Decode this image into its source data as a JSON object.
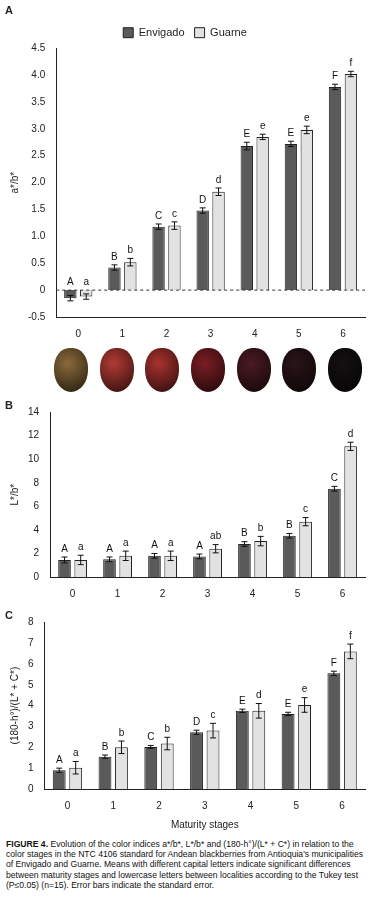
{
  "chart_data": [
    {
      "type": "bar",
      "title": "A",
      "ylabel": "a*/b*",
      "categories": [
        "0",
        "1",
        "2",
        "3",
        "4",
        "5",
        "6"
      ],
      "series": [
        {
          "name": "Envigado",
          "color": "#5a5a5a",
          "values": [
            -0.15,
            0.42,
            1.18,
            1.48,
            2.68,
            2.72,
            3.78
          ],
          "errors": [
            0.05,
            0.05,
            0.05,
            0.05,
            0.07,
            0.05,
            0.05
          ],
          "letters": [
            "A",
            "B",
            "C",
            "D",
            "E",
            "E",
            "F"
          ]
        },
        {
          "name": "Guarne",
          "color": "#e2e2e2",
          "values": [
            -0.12,
            0.52,
            1.2,
            1.83,
            2.85,
            2.98,
            4.02
          ],
          "errors": [
            0.05,
            0.07,
            0.07,
            0.07,
            0.05,
            0.07,
            0.05
          ],
          "letters": [
            "a",
            "b",
            "c",
            "d",
            "e",
            "e",
            "f"
          ]
        }
      ],
      "ylim": [
        -0.5,
        4.5
      ],
      "yticks": [
        -0.5,
        0,
        0.5,
        {
          "value": 1,
          "label": "1.0"
        },
        1.5,
        {
          "value": 2,
          "label": "2.0"
        },
        2.5,
        {
          "value": 3,
          "label": "3.0"
        },
        3.5,
        {
          "value": 4,
          "label": "4.0"
        },
        4.5
      ],
      "grid": false,
      "legend": "top"
    },
    {
      "type": "bar",
      "title": "B",
      "ylabel": "L*/b*",
      "categories": [
        "0",
        "1",
        "2",
        "3",
        "4",
        "5",
        "6"
      ],
      "series": [
        {
          "name": "Envigado",
          "color": "#5a5a5a",
          "values": [
            1.45,
            1.5,
            1.8,
            1.75,
            2.8,
            3.5,
            7.5
          ],
          "errors": [
            0.25,
            0.2,
            0.2,
            0.2,
            0.2,
            0.2,
            0.2
          ],
          "letters": [
            "A",
            "A",
            "A",
            "A",
            "B",
            "B",
            "C"
          ]
        },
        {
          "name": "Guarne",
          "color": "#e2e2e2",
          "values": [
            1.45,
            1.8,
            1.8,
            2.4,
            3.05,
            4.7,
            11.1
          ],
          "errors": [
            0.4,
            0.4,
            0.4,
            0.35,
            0.4,
            0.35,
            0.35
          ],
          "letters": [
            "a",
            "a",
            "a",
            "ab",
            "b",
            "c",
            "d"
          ]
        }
      ],
      "ylim": [
        0,
        14
      ],
      "yticks": [
        0,
        2,
        4,
        6,
        8,
        10,
        12,
        14
      ],
      "grid": false
    },
    {
      "type": "bar",
      "title": "C",
      "ylabel": "(180-h°)/(L* + C*)",
      "xlabel": "Maturity stages",
      "categories": [
        "0",
        "1",
        "2",
        "3",
        "4",
        "5",
        "6"
      ],
      "series": [
        {
          "name": "Envigado",
          "color": "#5a5a5a",
          "values": [
            0.9,
            1.55,
            2.02,
            2.72,
            3.75,
            3.6,
            5.55
          ],
          "errors": [
            0.1,
            0.08,
            0.07,
            0.1,
            0.08,
            0.08,
            0.1
          ],
          "letters": [
            "A",
            "B",
            "C",
            "D",
            "E",
            "E",
            "F"
          ]
        },
        {
          "name": "Guarne",
          "color": "#e2e2e2",
          "values": [
            1.02,
            2.0,
            2.18,
            2.8,
            3.75,
            4.03,
            6.6
          ],
          "errors": [
            0.3,
            0.3,
            0.3,
            0.35,
            0.35,
            0.35,
            0.35
          ],
          "letters": [
            "a",
            "b",
            "b",
            "c",
            "d",
            "e",
            "f"
          ]
        }
      ],
      "ylim": [
        0,
        8
      ],
      "yticks": [
        0,
        1,
        2,
        3,
        4,
        5,
        6,
        7,
        8
      ],
      "grid": false
    }
  ],
  "caption_label": "FIGURE 4.",
  "caption": "Evolution of the color indices a*/b*, L*/b* and (180-h°)/(L* + C*) in relation to the color stages in the NTC 4106 standard for Andean blackberries from Antioquia's municipalities of Envigado and Guarne. Means with different capital letters indicate significant differences between maturity stages and lowercase letters between localities according to the Tukey test (P≤0.05) (n=15). Error bars indicate the standard error."
}
